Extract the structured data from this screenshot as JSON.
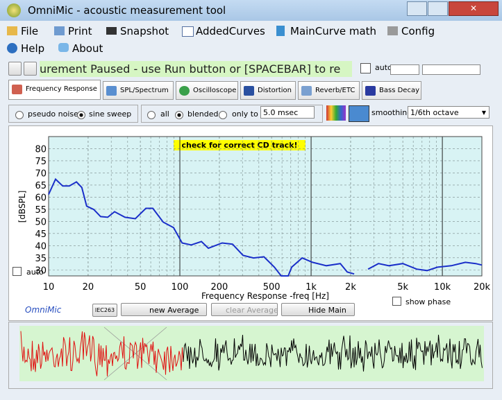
{
  "window": {
    "title": "OmniMic - acoustic measurement tool"
  },
  "menu": [
    "File",
    "Print",
    "Snapshot",
    "AddedCurves",
    "MainCurve math",
    "Config",
    "Help",
    "About"
  ],
  "toolbar": {
    "status": "urement Paused - use Run button or [SPACEBAR] to re",
    "auto": "autc"
  },
  "tabs": [
    "Frequency Response",
    "SPL/Spectrum",
    "Oscilloscope",
    "Distortion",
    "Reverb/ETC",
    "Bass Decay"
  ],
  "options": {
    "signal": [
      "pseudo noise",
      "sine sweep"
    ],
    "mode": [
      "all",
      "blended",
      "only to"
    ],
    "window": "5.0 msec",
    "smoothing_label": "smoothing",
    "smoothing": "1/6th octave"
  },
  "chart_data": {
    "type": "line",
    "ylabel": "[dBSPL]",
    "xlabel": "Frequency Response -freq [Hz]",
    "annotation": "check for correct CD track!",
    "log_x": true,
    "grid": true,
    "xlim": [
      10,
      20000
    ],
    "ylim": [
      27.5,
      85
    ],
    "xticks": [
      10,
      20,
      50,
      100,
      200,
      500,
      {
        "value": 1000,
        "label": "1k"
      },
      {
        "value": 2000,
        "label": "2k"
      },
      {
        "value": 5000,
        "label": "5k"
      },
      {
        "value": 10000,
        "label": "10k"
      },
      {
        "value": 20000,
        "label": "20k"
      }
    ],
    "yticks": [
      30,
      35,
      40,
      45,
      50,
      55,
      60,
      65,
      70,
      75,
      80
    ],
    "x": [
      10,
      11.3,
      12.8,
      14.4,
      16.3,
      17.9,
      19.5,
      22.1,
      24.9,
      28.2,
      31.8,
      38.2,
      45.8,
      55.1,
      62.2,
      74.6,
      89.6,
      104,
      122,
      146,
      165,
      210,
      252,
      303,
      364,
      437,
      525,
      592,
      669,
      711,
      854,
      1025,
      1307,
      1668,
      1884,
      2128,
      2400,
      2716,
      3260,
      3914,
      4993,
      6370,
      7650,
      9180,
      11720,
      14960,
      17950,
      20000
    ],
    "series": [
      {
        "name": "Main",
        "color": "#1a2fc9",
        "values": [
          61.1,
          67.4,
          64.6,
          64.6,
          66.3,
          64,
          56.3,
          54.9,
          52,
          51.7,
          54,
          51.7,
          51.1,
          55.4,
          55.4,
          49.7,
          47.4,
          41.1,
          40.3,
          41.7,
          38.9,
          41.1,
          40.6,
          36,
          34.9,
          35.4,
          31.1,
          27.5,
          27.5,
          31.1,
          34.9,
          33.1,
          31.7,
          32.6,
          29.1,
          28.3,
          null,
          30.3,
          32.6,
          31.7,
          32.6,
          30.3,
          29.7,
          31.1,
          31.7,
          33.1,
          32.6,
          32
        ]
      }
    ]
  },
  "chart_controls": {
    "auto": "auto",
    "brand": "OmniMic",
    "iec": "IEC263",
    "new_average": "new Average",
    "clear_average": "clear Average",
    "hide_main": "Hide Main",
    "show_phase": "show phase"
  }
}
